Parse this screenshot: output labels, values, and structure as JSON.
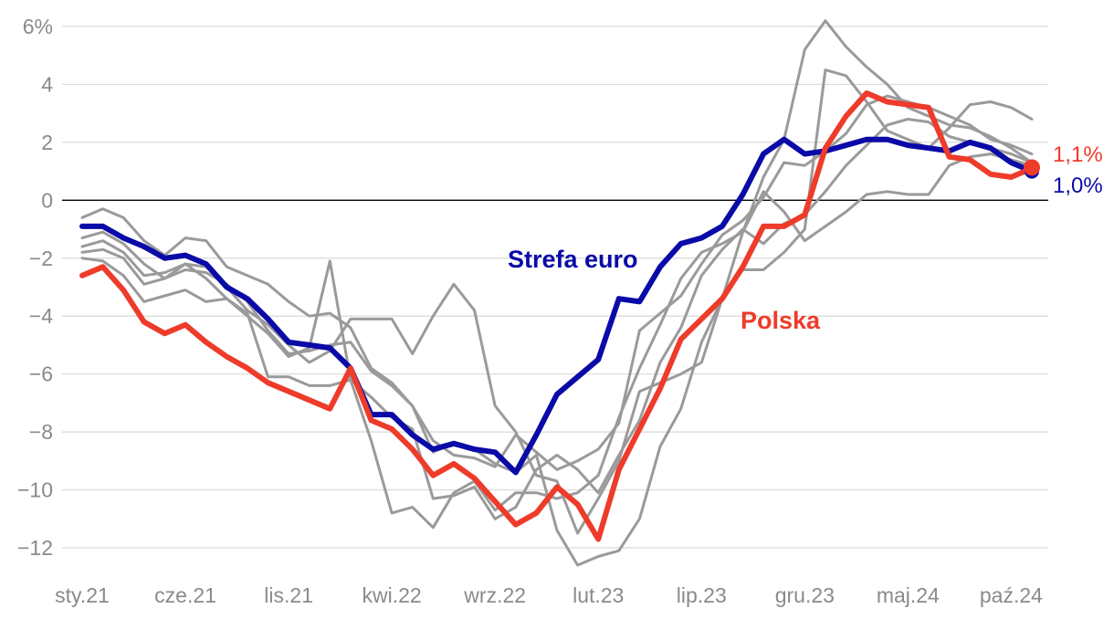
{
  "chart_data": {
    "type": "line",
    "title": "",
    "xlabel": "",
    "ylabel": "",
    "ylim": [
      -12.8,
      6.4
    ],
    "y_ticks": [
      {
        "value": 6,
        "label": "6%"
      },
      {
        "value": 4,
        "label": "4"
      },
      {
        "value": 2,
        "label": "2"
      },
      {
        "value": 0,
        "label": "0"
      },
      {
        "value": -2,
        "label": "−2"
      },
      {
        "value": -4,
        "label": "−4"
      },
      {
        "value": -6,
        "label": "−6"
      },
      {
        "value": -8,
        "label": "−8"
      },
      {
        "value": -10,
        "label": "−10"
      },
      {
        "value": -12,
        "label": "−12"
      }
    ],
    "x_ticks": [
      {
        "index": 0,
        "label": "sty.21"
      },
      {
        "index": 5,
        "label": "cze.21"
      },
      {
        "index": 10,
        "label": "lis.21"
      },
      {
        "index": 15,
        "label": "kwi.22"
      },
      {
        "index": 20,
        "label": "wrz.22"
      },
      {
        "index": 25,
        "label": "lut.23"
      },
      {
        "index": 30,
        "label": "lip.23"
      },
      {
        "index": 35,
        "label": "gru.23"
      },
      {
        "index": 40,
        "label": "maj.24"
      },
      {
        "index": 45,
        "label": "paź.24"
      }
    ],
    "grid": true,
    "zero_line": true,
    "colors": {
      "strefa_euro": "#0a0aa8",
      "polska": "#ee3b2a",
      "others": "#9a9a9a",
      "grid": "#d9d9d9",
      "tick_text": "#8a8a8a"
    },
    "series_labels": {
      "strefa_euro": "Strefa euro",
      "polska": "Polska"
    },
    "end_labels": {
      "polska": "1,1%",
      "strefa_euro": "1,0%"
    },
    "series": [
      {
        "key": "strefa_euro",
        "name": "Strefa euro",
        "values": [
          -0.9,
          -0.9,
          -1.3,
          -1.6,
          -2.0,
          -1.9,
          -2.2,
          -3.0,
          -3.4,
          -4.1,
          -4.9,
          -5.0,
          -5.1,
          -5.8,
          -7.4,
          -7.4,
          -8.1,
          -8.6,
          -8.4,
          -8.6,
          -8.7,
          -9.4,
          -8.1,
          -6.7,
          -6.1,
          -5.5,
          -3.4,
          -3.5,
          -2.3,
          -1.5,
          -1.3,
          -0.9,
          0.2,
          1.6,
          2.1,
          1.6,
          1.7,
          1.9,
          2.1,
          2.1,
          1.9,
          1.8,
          1.7,
          2.0,
          1.8,
          1.3,
          1.0
        ]
      },
      {
        "key": "polska",
        "name": "Polska",
        "values": [
          -2.6,
          -2.3,
          -3.1,
          -4.2,
          -4.6,
          -4.3,
          -4.9,
          -5.4,
          -5.8,
          -6.3,
          -6.6,
          -6.9,
          -7.2,
          -5.8,
          -7.6,
          -7.9,
          -8.6,
          -9.5,
          -9.1,
          -9.6,
          -10.4,
          -11.2,
          -10.8,
          -9.9,
          -10.5,
          -11.7,
          -9.3,
          -7.9,
          -6.5,
          -4.8,
          -4.1,
          -3.4,
          -2.3,
          -0.9,
          -0.9,
          -0.5,
          1.8,
          2.9,
          3.7,
          3.4,
          3.3,
          3.2,
          1.5,
          1.4,
          0.9,
          0.8,
          1.1
        ]
      },
      {
        "key": "other_1",
        "name": "",
        "values": [
          -0.6,
          -0.3,
          -0.6,
          -1.4,
          -1.9,
          -1.3,
          -1.4,
          -2.3,
          -2.6,
          -2.9,
          -3.5,
          -4.0,
          -3.9,
          -4.4,
          -5.8,
          -6.3,
          -7.1,
          -8.7,
          -8.4,
          -8.6,
          -9.1,
          -9.4,
          -8.8,
          -11.4,
          -12.6,
          -12.3,
          -12.1,
          -11.0,
          -8.5,
          -7.2,
          -4.9,
          -3.4,
          -1.1,
          0.8,
          2.1,
          5.2,
          6.2,
          5.3,
          4.6,
          4.0,
          3.2,
          2.9,
          2.6,
          2.5,
          2.2,
          1.8,
          1.3
        ]
      },
      {
        "key": "other_2",
        "name": "",
        "values": [
          -1.3,
          -1.1,
          -1.5,
          -2.2,
          -2.7,
          -2.4,
          -2.5,
          -2.9,
          -3.5,
          -4.5,
          -5.3,
          -5.2,
          -5.0,
          -4.9,
          -5.9,
          -6.4,
          -7.1,
          -8.3,
          -8.8,
          -8.9,
          -9.2,
          -8.1,
          -8.7,
          -9.3,
          -9.0,
          -8.6,
          -7.7,
          -4.5,
          -3.9,
          -3.3,
          -2.2,
          -1.2,
          -0.7,
          0.1,
          1.3,
          1.2,
          1.7,
          2.3,
          3.3,
          3.6,
          3.4,
          3.2,
          2.9,
          2.6,
          2.1,
          1.9,
          1.6
        ]
      },
      {
        "key": "other_3",
        "name": "",
        "values": [
          -1.6,
          -1.4,
          -1.8,
          -2.6,
          -2.5,
          -2.2,
          -2.7,
          -3.4,
          -4.0,
          -4.6,
          -5.4,
          -5.1,
          -2.1,
          -6.2,
          -6.8,
          -7.5,
          -7.9,
          -10.3,
          -10.2,
          -9.9,
          -11.0,
          -10.6,
          -9.3,
          -8.8,
          -9.3,
          -10.1,
          -8.8,
          -7.6,
          -5.6,
          -4.4,
          -2.6,
          -1.7,
          -1.0,
          -1.5,
          -0.8,
          -0.5,
          0.3,
          1.2,
          1.9,
          2.6,
          2.8,
          2.7,
          2.2,
          2.0,
          1.8,
          1.6,
          1.3
        ]
      },
      {
        "key": "other_4",
        "name": "",
        "values": [
          -2.0,
          -2.1,
          -2.6,
          -3.5,
          -3.3,
          -3.1,
          -3.5,
          -3.4,
          -3.9,
          -6.1,
          -6.1,
          -6.4,
          -6.4,
          -6.2,
          -8.3,
          -10.8,
          -10.6,
          -11.3,
          -10.1,
          -9.7,
          -10.7,
          -10.1,
          -10.1,
          -10.3,
          -10.1,
          -9.5,
          -7.5,
          -5.8,
          -4.3,
          -2.7,
          -1.8,
          -1.5,
          -1.1,
          0.3,
          -0.4,
          -1.4,
          -0.9,
          -0.4,
          0.2,
          0.3,
          0.2,
          0.2,
          1.2,
          1.5,
          1.6,
          1.4,
          1.2
        ]
      },
      {
        "key": "other_5",
        "name": "",
        "values": [
          -1.8,
          -1.7,
          -2.0,
          -2.9,
          -2.7,
          -2.2,
          -2.3,
          -3.0,
          -3.8,
          -4.3,
          -5.0,
          -5.6,
          -5.2,
          -4.1,
          -4.1,
          -4.1,
          -5.3,
          -4.0,
          -2.9,
          -3.8,
          -7.1,
          -8.0,
          -9.5,
          -9.7,
          -11.5,
          -10.3,
          -9.0,
          -6.6,
          -6.3,
          -6.0,
          -5.6,
          -3.4,
          -2.4,
          -2.4,
          -1.8,
          -1.0,
          4.5,
          4.3,
          3.4,
          2.4,
          2.1,
          1.8,
          2.5,
          3.3,
          3.4,
          3.2,
          2.8
        ]
      }
    ]
  }
}
